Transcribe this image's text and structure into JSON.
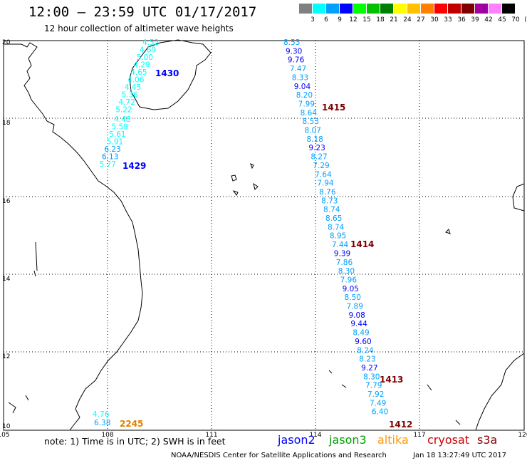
{
  "header": {
    "title": "12:00 – 23:59 UTC 01/17/2017",
    "subtitle": "12 hour collection of altimeter wave heights"
  },
  "colorbar": {
    "swatches": [
      "#808080",
      "#00ffff",
      "#00a0ff",
      "#0000ff",
      "#00ff00",
      "#00c000",
      "#008000",
      "#ffff00",
      "#ffc000",
      "#ff8000",
      "#ff0000",
      "#c00000",
      "#800000",
      "#a000a0",
      "#ff80ff",
      "#000000"
    ],
    "labels": [
      "3",
      "6",
      "9",
      "12",
      "15",
      "18",
      "21",
      "24",
      "27",
      "30",
      "33",
      "36",
      "39",
      "42",
      "45",
      "70",
      "(ft)"
    ]
  },
  "axes": {
    "lon_ticks": [
      "105",
      "108",
      "111",
      "114",
      "117",
      "120"
    ],
    "lat_ticks": [
      "20",
      "18",
      "16",
      "14",
      "12",
      "10"
    ]
  },
  "passes": [
    {
      "satellite": "jason2",
      "time": "1430",
      "color": "#0000ff",
      "values": [
        "4.52",
        "4.69",
        "5.00",
        "4.29",
        "4.65",
        "4.06",
        "4.45",
        "5.36",
        "4.72",
        "5.22"
      ]
    },
    {
      "satellite": "jason2",
      "time": "1429",
      "color": "#0000ff",
      "values": [
        "4.48",
        "5.59",
        "5.61",
        "5.91",
        "6.23",
        "6.13",
        "5.77"
      ]
    },
    {
      "satellite": "cryosat",
      "time": "1415",
      "color": "#800000",
      "values": [
        "8.53",
        "9.30",
        "9.76",
        "7.47",
        "8.33",
        "9.04",
        "8.20",
        "7.99",
        "8.64",
        "8.53",
        "8.07",
        "8.18",
        "9.23",
        "8.27",
        "7.29",
        "7.64",
        "7.94",
        "8.76",
        "8.73",
        "8.74",
        "8.65",
        "8.74",
        "8.95",
        "7.44",
        "9.39",
        "7.86",
        "8.30",
        "7.96",
        "9.05",
        "8.50",
        "7.89",
        "9.08",
        "9.44",
        "8.49",
        "9.60",
        "8.24",
        "8.23",
        "9.27",
        "8.30",
        "7.79",
        "7.92",
        "7.49",
        "6.40"
      ],
      "other_times": [
        "1414",
        "1413",
        "1412"
      ]
    },
    {
      "satellite": "altika",
      "time": "2245",
      "color": "#e08000",
      "values": [
        "4.76",
        "6.38"
      ]
    }
  ],
  "legend": {
    "note": "note:  1) Time is in UTC;  2) SWH is in feet",
    "satellites": [
      {
        "name": "jason2",
        "color": "#0000ff"
      },
      {
        "name": "jason3",
        "color": "#00a000"
      },
      {
        "name": "altika",
        "color": "#ff9900"
      },
      {
        "name": "cryosat",
        "color": "#cc0000"
      },
      {
        "name": "s3a",
        "color": "#800000"
      }
    ]
  },
  "footer": {
    "credit": "NOAA/NESDIS Center for Satellite Applications and Research",
    "timestamp": "Jan 18 13:27:49 UTC 2017"
  }
}
